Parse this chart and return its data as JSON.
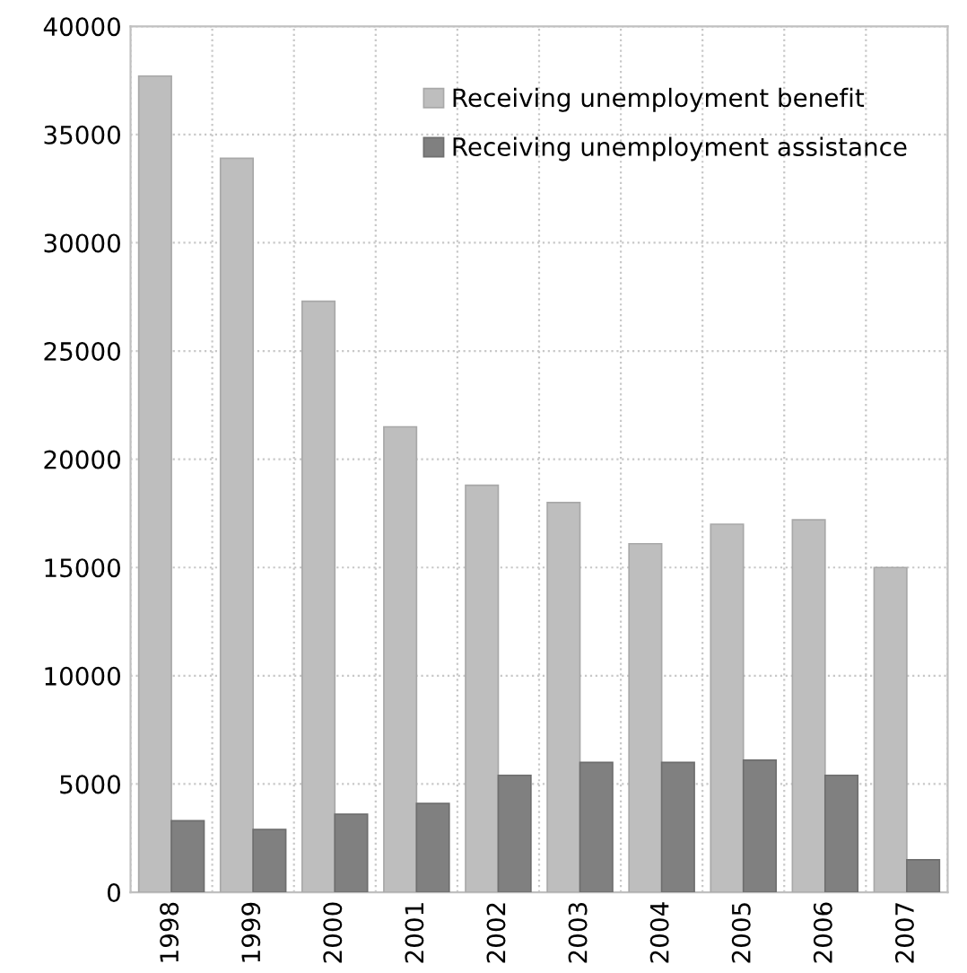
{
  "chart_data": {
    "type": "bar",
    "categories": [
      "1998",
      "1999",
      "2000",
      "2001",
      "2002",
      "2003",
      "2004",
      "2005",
      "2006",
      "2007"
    ],
    "series": [
      {
        "name": "Receiving unemployment benefit",
        "color": "#bebebe",
        "values": [
          37700,
          33900,
          27300,
          21500,
          18800,
          18000,
          16100,
          17000,
          17200,
          15000
        ]
      },
      {
        "name": "Receiving unemployment assistance",
        "color": "#808080",
        "values": [
          3300,
          2900,
          3600,
          4100,
          5400,
          6000,
          6000,
          6100,
          5400,
          1500
        ]
      }
    ],
    "ylim": [
      0,
      40000
    ],
    "yticks": [
      0,
      5000,
      10000,
      15000,
      20000,
      25000,
      30000,
      35000,
      40000
    ],
    "grid": true,
    "legend": "top right"
  }
}
